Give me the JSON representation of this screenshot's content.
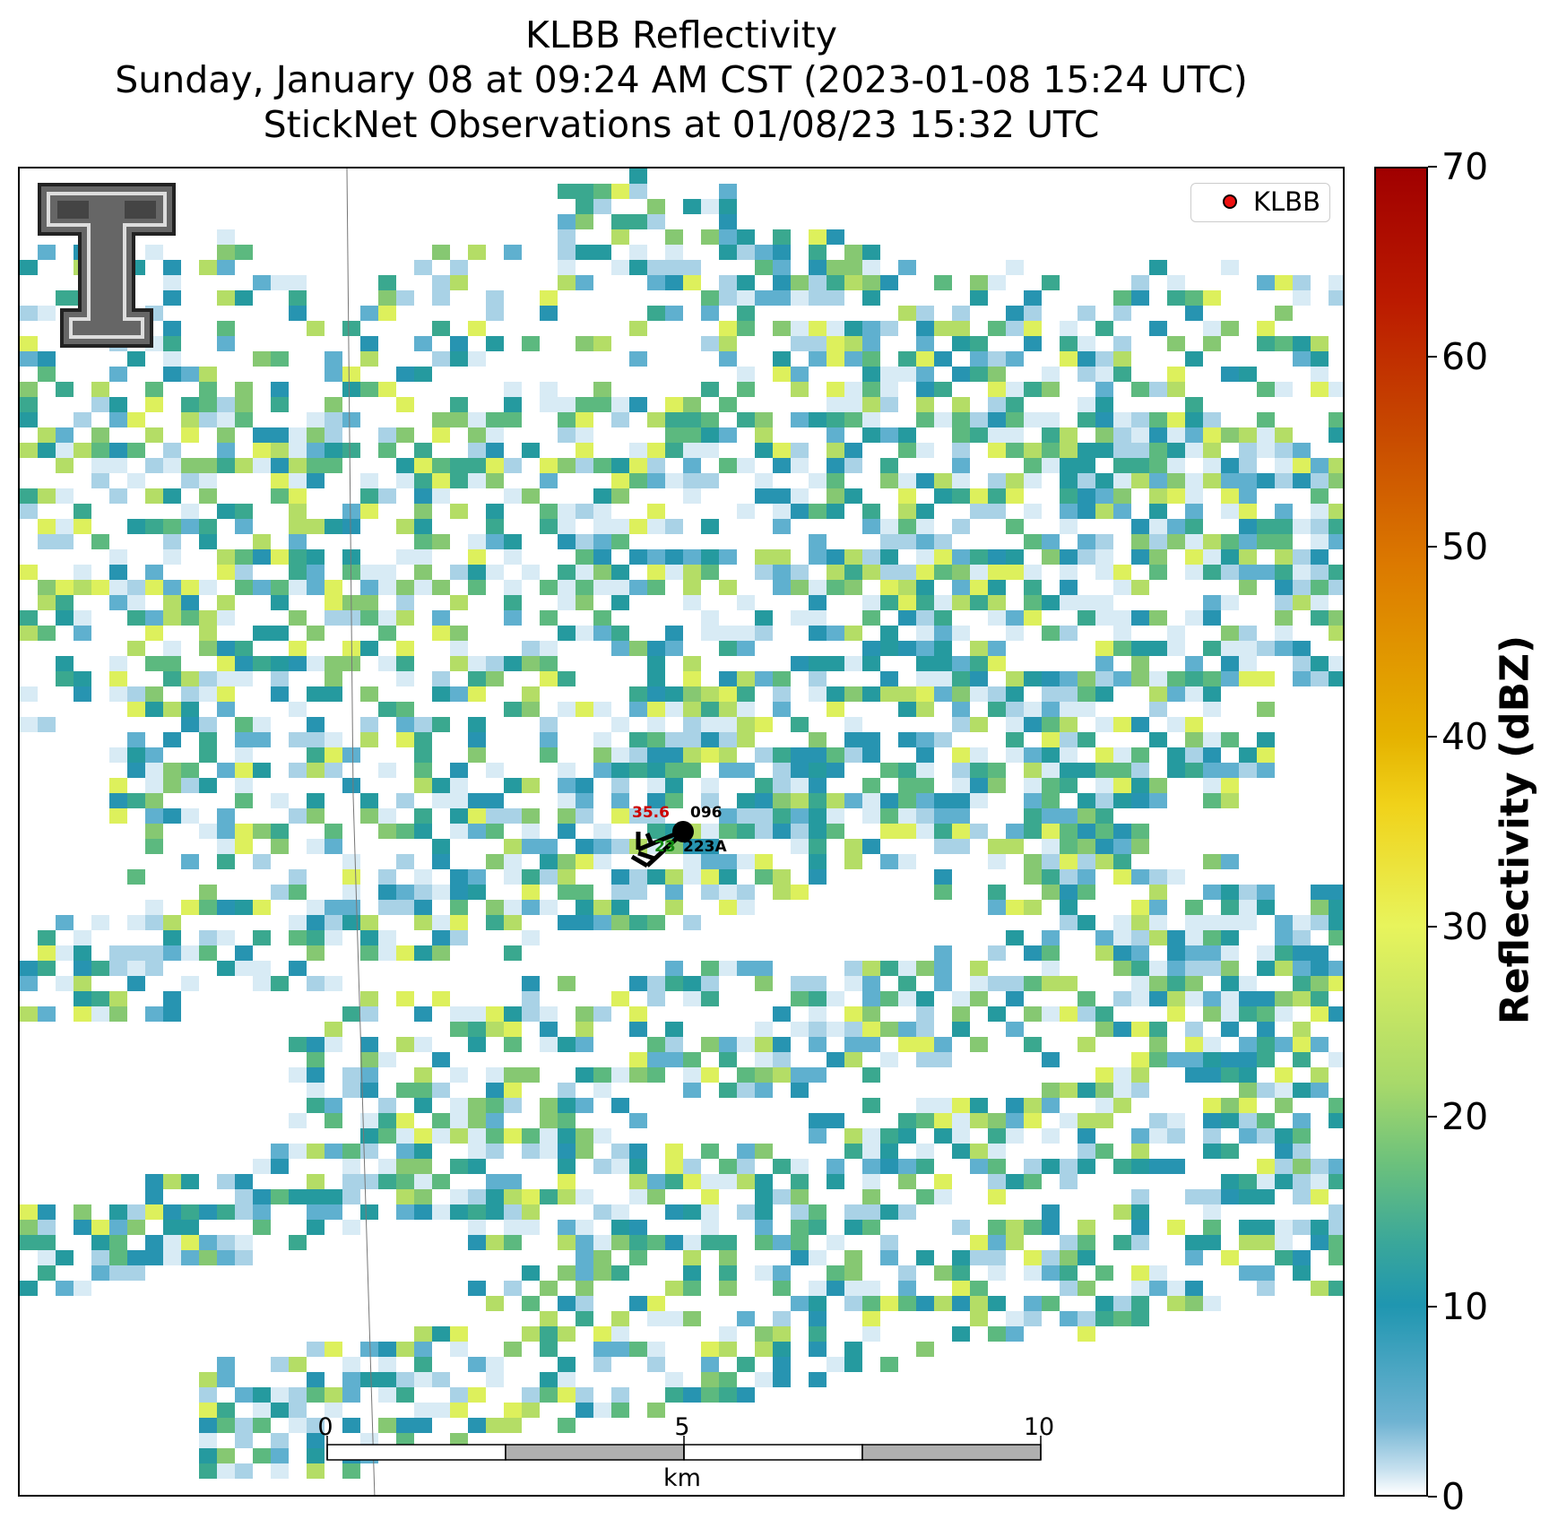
{
  "title": {
    "line1": "KLBB Reflectivity",
    "line2": "Sunday, January 08 at 09:24 AM CST (2023-01-08 15:24 UTC)",
    "line3": "StickNet Observations at 01/08/23 15:32 UTC"
  },
  "legend": {
    "label": "KLBB",
    "marker_color": "#ee1111"
  },
  "colorbar": {
    "label": "Reflectivity (dBZ)",
    "ticks": [
      "0",
      "10",
      "20",
      "30",
      "40",
      "50",
      "60",
      "70"
    ],
    "range": [
      0,
      70
    ],
    "colors": [
      "#ffffff",
      "#1f96b0",
      "#6cc17c",
      "#e8f45c",
      "#e5b200",
      "#dc7a00",
      "#a00000"
    ]
  },
  "scalebar": {
    "labels": [
      "0",
      "5",
      "10"
    ],
    "unit": "km"
  },
  "stations": [
    {
      "temperature": "35.6",
      "id": "096",
      "temp_color": "#cc0000"
    },
    {
      "dewpoint": "23",
      "id": "223A",
      "dew_color": "#118811"
    }
  ],
  "logo": {
    "name": "texas-tech-double-t-logo"
  }
}
